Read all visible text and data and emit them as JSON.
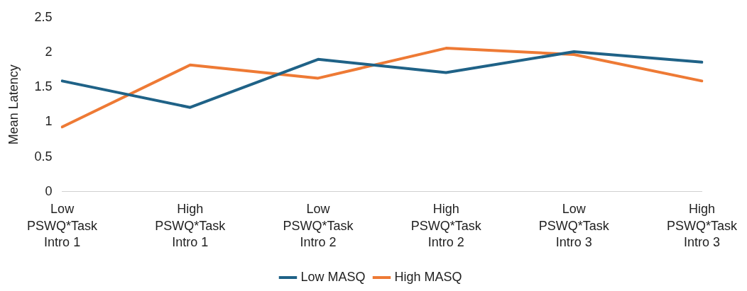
{
  "chart_data": {
    "type": "line",
    "ylabel": "Mean Latency",
    "categories": [
      "Low PSWQ*Task Intro 1",
      "High PSWQ*Task Intro 1",
      "Low PSWQ*Task Intro 2",
      "High PSWQ*Task Intro 2",
      "Low PSWQ*Task Intro 3",
      "High PSWQ*Task Intro 3"
    ],
    "series": [
      {
        "name": "Low MASQ",
        "color": "#1f6287",
        "values": [
          1.59,
          1.21,
          1.9,
          1.71,
          2.01,
          1.86
        ]
      },
      {
        "name": "High MASQ",
        "color": "#ee7a35",
        "values": [
          0.93,
          1.82,
          1.63,
          2.06,
          1.97,
          1.59
        ]
      }
    ],
    "ylim": [
      0,
      2.5
    ],
    "yticks": [
      0,
      0.5,
      1,
      1.5,
      2,
      2.5
    ],
    "grid": false,
    "legend": "bottom",
    "marker": "none",
    "line_style": "solid"
  }
}
